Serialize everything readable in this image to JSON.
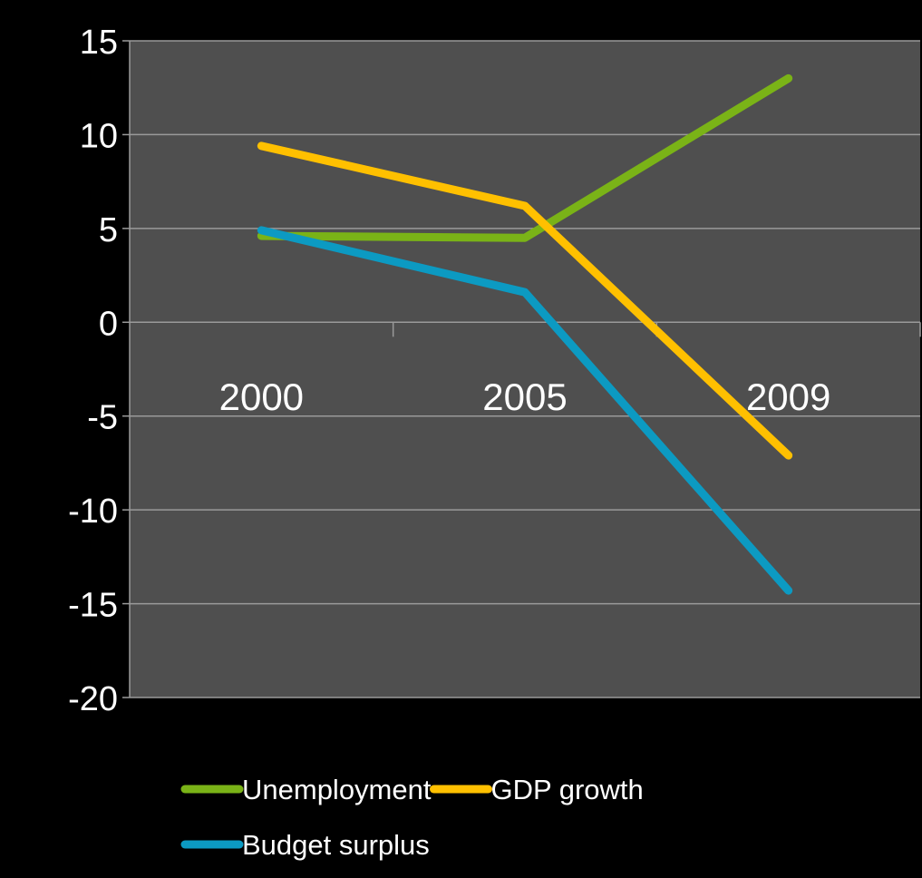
{
  "chart_data": {
    "type": "line",
    "title": "",
    "xlabel": "",
    "ylabel": "",
    "categories": [
      "2000",
      "2005",
      "2009"
    ],
    "ylim": [
      -20,
      15
    ],
    "yticks": [
      15,
      10,
      5,
      0,
      -5,
      -10,
      -15,
      -20
    ],
    "grid": true,
    "legend_position": "bottom",
    "series": [
      {
        "name": "Unemployment",
        "values": [
          4.6,
          4.5,
          13.0
        ],
        "color": "#7ab317"
      },
      {
        "name": "GDP growth",
        "values": [
          9.4,
          6.2,
          -7.1
        ],
        "color": "#ffc000"
      },
      {
        "name": "Budget surplus",
        "values": [
          4.9,
          1.6,
          -14.3
        ],
        "color": "#0c9ac2"
      }
    ]
  },
  "colors": {
    "background": "#000000",
    "plot_area": "#4f4f4f",
    "gridline": "#9a9a9a",
    "text": "#ffffff"
  }
}
